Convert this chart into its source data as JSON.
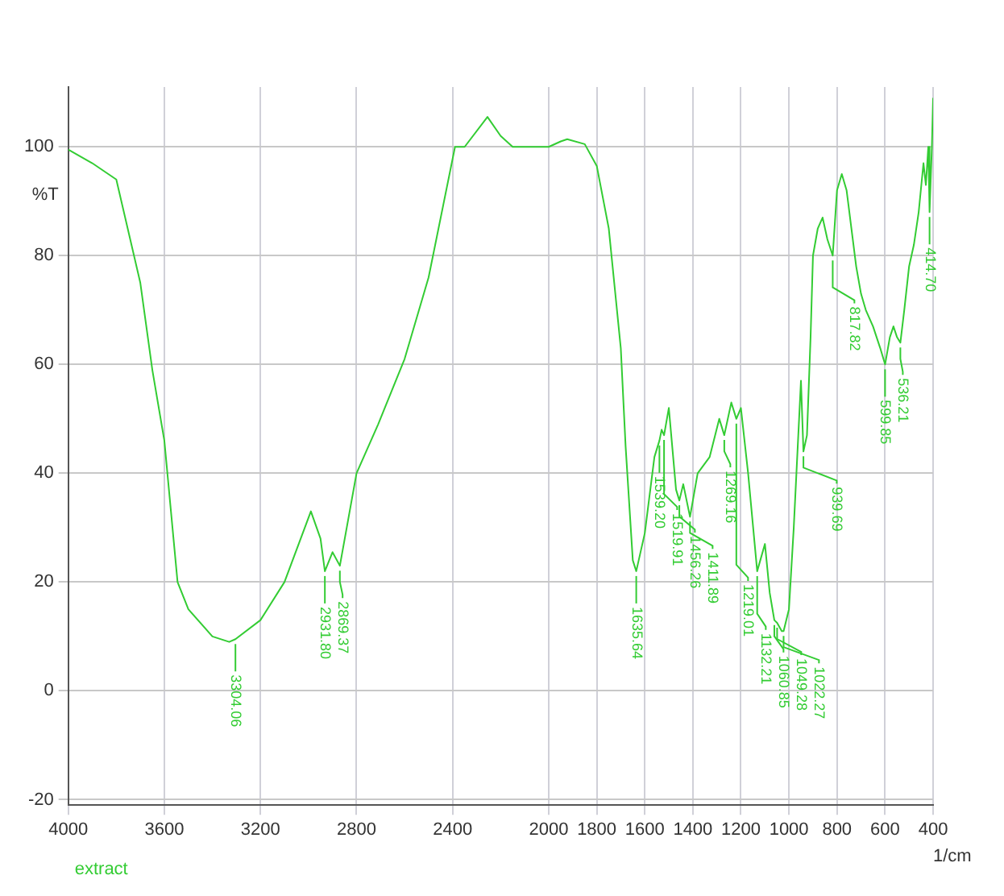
{
  "chart_data": {
    "type": "line",
    "xlabel": "1/cm",
    "ylabel": "%T",
    "xlim": [
      4000,
      400
    ],
    "xticks": [
      4000,
      3600,
      3200,
      2800,
      2400,
      2000,
      1800,
      1600,
      1400,
      1200,
      1000,
      800,
      600,
      400
    ],
    "ylim": [
      -21,
      111
    ],
    "yticks": [
      -20,
      0,
      20,
      40,
      60,
      80,
      100
    ],
    "grid": true,
    "legend": false,
    "marker": "none",
    "series": [
      {
        "name": "extract",
        "color": "#33cc33",
        "x": [
          4000,
          3900,
          3800,
          3700,
          3650,
          3600,
          3545,
          3500,
          3400,
          3330,
          3304.06,
          3200,
          3100,
          2990,
          2950,
          2931.8,
          2900,
          2869.37,
          2800,
          2710,
          2600,
          2500,
          2390,
          2350,
          2255,
          2200,
          2150,
          2000,
          1950,
          1923,
          1850,
          1800,
          1750,
          1700,
          1680,
          1650,
          1635.64,
          1600,
          1560,
          1539.2,
          1530,
          1519.91,
          1500,
          1470,
          1456.26,
          1440,
          1411.89,
          1380,
          1330,
          1290,
          1269.16,
          1240,
          1219.01,
          1200,
          1170,
          1132.21,
          1100,
          1080,
          1060.85,
          1049.28,
          1030,
          1022.27,
          1000,
          980,
          950,
          939.69,
          925,
          910,
          900,
          880,
          860,
          840,
          817.82,
          800,
          780,
          760,
          740,
          720,
          700,
          680,
          650,
          620,
          599.85,
          580,
          565,
          550,
          536.21,
          520,
          500,
          480,
          460,
          440,
          430,
          420,
          414.7,
          405,
          400
        ],
        "values": [
          99.5,
          97,
          94,
          75,
          59,
          46,
          20,
          15,
          10,
          9,
          9.5,
          13,
          20,
          33,
          28,
          22,
          25.5,
          23,
          40,
          49,
          61,
          76,
          100,
          100,
          105.5,
          102,
          100,
          100,
          101,
          101.4,
          100.5,
          96.5,
          85,
          63,
          45,
          24,
          22,
          29,
          43,
          46,
          48,
          47,
          52,
          37,
          35,
          38,
          32,
          40,
          43,
          50,
          47,
          53,
          50,
          52,
          40,
          22,
          27,
          18,
          13,
          12.5,
          11,
          11,
          15,
          30,
          57,
          44,
          47,
          65,
          80,
          85,
          87,
          83,
          80,
          92,
          95,
          92,
          85,
          78,
          73,
          70,
          67,
          63,
          60,
          65,
          67,
          65,
          64,
          70,
          78,
          82,
          88,
          97,
          93,
          100,
          88,
          100,
          109
        ]
      }
    ],
    "annotations": [
      {
        "text": "3304.06",
        "x": 3304.06,
        "y": 9.5
      },
      {
        "text": "2931.80",
        "x": 2931.8,
        "y": 22
      },
      {
        "text": "2869.37",
        "x": 2869.37,
        "y": 23
      },
      {
        "text": "1635.64",
        "x": 1635.64,
        "y": 22
      },
      {
        "text": "1539.20",
        "x": 1539.2,
        "y": 46
      },
      {
        "text": "1519.91",
        "x": 1519.91,
        "y": 47
      },
      {
        "text": "1456.26",
        "x": 1456.26,
        "y": 35
      },
      {
        "text": "1411.89",
        "x": 1411.89,
        "y": 32
      },
      {
        "text": "1269.16",
        "x": 1269.16,
        "y": 47
      },
      {
        "text": "1219.01",
        "x": 1219.01,
        "y": 50
      },
      {
        "text": "1132.21",
        "x": 1132.21,
        "y": 22
      },
      {
        "text": "1060.85",
        "x": 1060.85,
        "y": 13
      },
      {
        "text": "1049.28",
        "x": 1049.28,
        "y": 12.5
      },
      {
        "text": "1022.27",
        "x": 1022.27,
        "y": 11
      },
      {
        "text": "939.69",
        "x": 939.69,
        "y": 44
      },
      {
        "text": "817.82",
        "x": 817.82,
        "y": 80
      },
      {
        "text": "599.85",
        "x": 599.85,
        "y": 60
      },
      {
        "text": "536.21",
        "x": 536.21,
        "y": 64
      },
      {
        "text": "414.70",
        "x": 414.7,
        "y": 88
      }
    ]
  }
}
